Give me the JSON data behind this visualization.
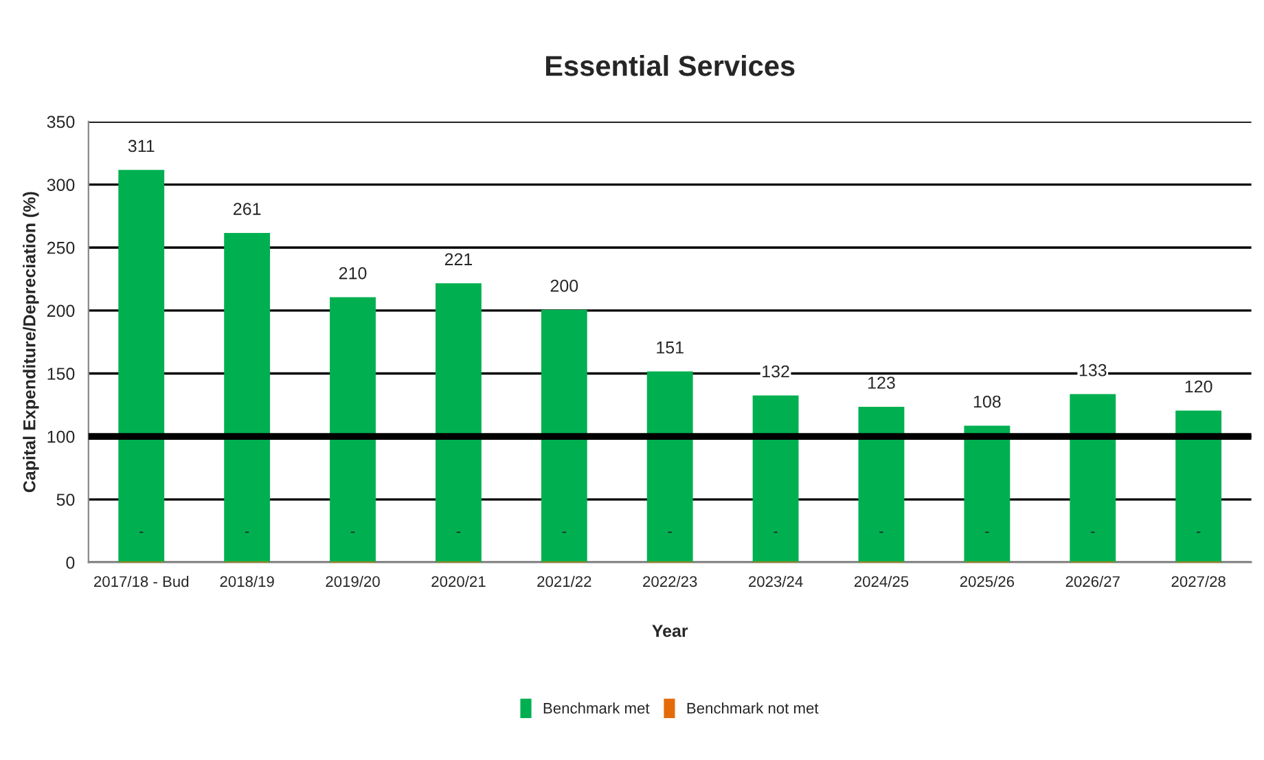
{
  "chart_data": {
    "type": "bar",
    "title": "Essential Services",
    "xlabel": "Year",
    "ylabel": "Capital Expenditure/Depreciation (%)",
    "categories": [
      "2017/18 - Bud",
      "2018/19",
      "2019/20",
      "2020/21",
      "2021/22",
      "2022/23",
      "2023/24",
      "2024/25",
      "2025/26",
      "2026/27",
      "2027/28"
    ],
    "series": [
      {
        "name": "Benchmark met",
        "color": "#00b050",
        "values": [
          311,
          261,
          210,
          221,
          200,
          151,
          132,
          123,
          108,
          133,
          120
        ],
        "value_labels": [
          "311",
          "261",
          "210",
          "221",
          "200",
          "151",
          "132",
          "123",
          "108",
          "133",
          "120"
        ]
      },
      {
        "name": "Benchmark not met",
        "color": "#e36c09",
        "values": [
          0,
          0,
          0,
          0,
          0,
          0,
          0,
          0,
          0,
          0,
          0
        ],
        "value_labels": [
          "-",
          "-",
          "-",
          "-",
          "-",
          "-",
          "-",
          "-",
          "-",
          "-",
          "-"
        ]
      }
    ],
    "ylim": [
      0,
      350
    ],
    "yticks": [
      0,
      50,
      100,
      150,
      200,
      250,
      300,
      350
    ],
    "grid": "y",
    "legend": "bottom",
    "ref_lines": [
      {
        "axis": "y",
        "value": 100,
        "color": "#000000",
        "line_style": "solid"
      }
    ]
  }
}
